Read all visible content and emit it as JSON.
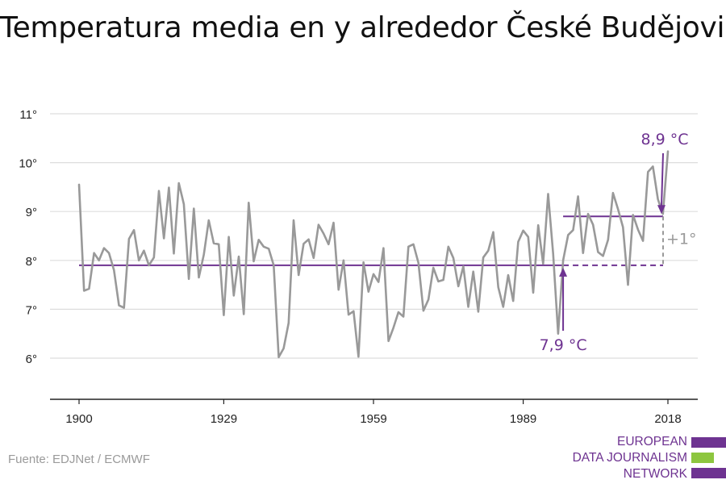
{
  "chart_data": {
    "type": "line",
    "title": "Temperatura media en y alrededor České Budějovice",
    "xlabel": "",
    "ylabel": "",
    "xlim": [
      1900,
      2018
    ],
    "ylim": [
      5,
      11.2
    ],
    "x_ticks": [
      "1900",
      "1929",
      "1959",
      "1989",
      "2018"
    ],
    "y_ticks": [
      "6°",
      "7°",
      "8°",
      "9°",
      "10°",
      "11°"
    ],
    "grid": true,
    "series": [
      {
        "x": [
          1900,
          1901,
          1902,
          1903,
          1904,
          1905,
          1906,
          1907,
          1908,
          1909,
          1910,
          1911,
          1912,
          1913,
          1914,
          1915,
          1916,
          1917,
          1918,
          1919,
          1920,
          1921,
          1922,
          1923,
          1924,
          1925,
          1926,
          1927,
          1928,
          1929,
          1930,
          1931,
          1932,
          1933,
          1934,
          1935,
          1936,
          1937,
          1938,
          1939,
          1940,
          1941,
          1942,
          1943,
          1944,
          1945,
          1946,
          1947,
          1948,
          1949,
          1950,
          1951,
          1952,
          1953,
          1954,
          1955,
          1956,
          1957,
          1958,
          1959,
          1960,
          1961,
          1962,
          1963,
          1964,
          1965,
          1966,
          1967,
          1968,
          1969,
          1970,
          1971,
          1972,
          1973,
          1974,
          1975,
          1976,
          1977,
          1978,
          1979,
          1980,
          1981,
          1982,
          1983,
          1984,
          1985,
          1986,
          1987,
          1988,
          1989,
          1990,
          1991,
          1992,
          1993,
          1994,
          1995,
          1996,
          1997,
          1998,
          1999,
          2000,
          2001,
          2002,
          2003,
          2004,
          2005,
          2006,
          2007,
          2008,
          2009,
          2010,
          2011,
          2012,
          2013,
          2014,
          2015,
          2016,
          2017,
          2018
        ],
        "values": [
          9.55,
          7.38,
          7.42,
          8.15,
          8.0,
          8.25,
          8.15,
          7.8,
          7.08,
          7.03,
          8.44,
          8.62,
          8.0,
          8.2,
          7.9,
          8.06,
          9.42,
          8.45,
          9.49,
          8.14,
          9.58,
          9.15,
          7.62,
          9.06,
          7.65,
          8.12,
          8.82,
          8.35,
          8.33,
          6.88,
          8.48,
          7.28,
          8.08,
          6.9,
          9.18,
          7.98,
          8.42,
          8.28,
          8.24,
          7.9,
          6.02,
          6.2,
          6.72,
          8.82,
          7.7,
          8.34,
          8.43,
          8.05,
          8.73,
          8.55,
          8.33,
          8.77,
          7.4,
          8.0,
          6.89,
          6.96,
          6.03,
          7.96,
          7.36,
          7.72,
          7.56,
          8.25,
          6.35,
          6.62,
          6.94,
          6.85,
          8.28,
          8.33,
          7.95,
          6.97,
          7.2,
          7.85,
          7.57,
          7.6,
          8.28,
          8.05,
          7.47,
          7.88,
          7.05,
          7.77,
          6.95,
          8.06,
          8.2,
          8.58,
          7.45,
          7.05,
          7.7,
          7.17,
          8.38,
          8.61,
          8.48,
          7.34,
          8.72,
          7.93,
          9.36,
          8.14,
          6.5,
          8.0,
          8.52,
          8.62,
          9.31,
          8.15,
          8.95,
          8.73,
          8.17,
          8.09,
          8.42,
          9.38,
          9.05,
          8.68,
          7.5,
          8.93,
          8.63,
          8.4,
          9.81,
          9.92,
          9.25,
          8.95,
          10.23
        ]
      }
    ],
    "reference": {
      "baseline_value": 7.9,
      "recent_value": 8.9,
      "baseline_label": "7,9 °C",
      "recent_label": "8,9 °C",
      "difference_label": "+1°"
    },
    "colors": {
      "series": "#999999",
      "reference": "#6e3391",
      "difference": "#9a9a9a",
      "grid": "#dddddd",
      "axis": "#222222"
    }
  },
  "source": "Fuente: EDJNet / ECMWF",
  "logo": {
    "lines": [
      "EUROPEAN",
      "DATA JOURNALISM",
      "NETWORK"
    ],
    "colors": {
      "purple": "#6e3391",
      "green": "#8dc63f"
    }
  }
}
